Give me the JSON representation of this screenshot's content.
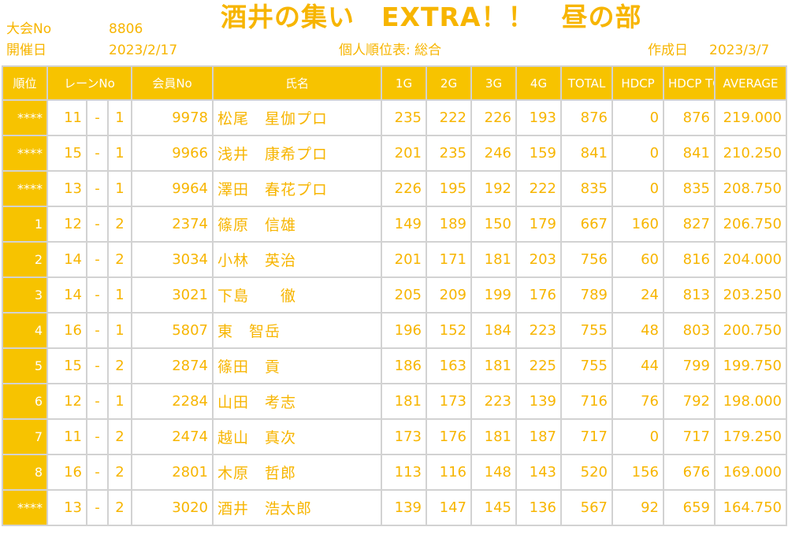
{
  "header": {
    "event_no_label": "大会No",
    "event_no": "8806",
    "date_label": "開催日",
    "date": "2023/2/17",
    "title": "酒井の集い　EXTRA！！　昼の部",
    "subtitle": "個人順位表: 総合",
    "created_label": "作成日",
    "created_date": "2023/3/7"
  },
  "columns": [
    "順位",
    "レーンNo",
    "会員No",
    "氏名",
    "1G",
    "2G",
    "3G",
    "4G",
    "TOTAL",
    "HDCP",
    "HDCP TOTAL",
    "AVERAGE"
  ],
  "lane_separator": "-",
  "rows": [
    {
      "rank": "****",
      "lane": "11",
      "lane_pos": "1",
      "member_no": "9978",
      "name": "松尾　星伽プロ",
      "g1": "235",
      "g2": "222",
      "g3": "226",
      "g4": "193",
      "total": "876",
      "hdcp": "0",
      "hdcp_total": "876",
      "average": "219.000"
    },
    {
      "rank": "****",
      "lane": "15",
      "lane_pos": "1",
      "member_no": "9966",
      "name": "浅井　康希プロ",
      "g1": "201",
      "g2": "235",
      "g3": "246",
      "g4": "159",
      "total": "841",
      "hdcp": "0",
      "hdcp_total": "841",
      "average": "210.250"
    },
    {
      "rank": "****",
      "lane": "13",
      "lane_pos": "1",
      "member_no": "9964",
      "name": "澤田　春花プロ",
      "g1": "226",
      "g2": "195",
      "g3": "192",
      "g4": "222",
      "total": "835",
      "hdcp": "0",
      "hdcp_total": "835",
      "average": "208.750"
    },
    {
      "rank": "1",
      "lane": "12",
      "lane_pos": "2",
      "member_no": "2374",
      "name": "篠原　信雄",
      "g1": "149",
      "g2": "189",
      "g3": "150",
      "g4": "179",
      "total": "667",
      "hdcp": "160",
      "hdcp_total": "827",
      "average": "206.750"
    },
    {
      "rank": "2",
      "lane": "14",
      "lane_pos": "2",
      "member_no": "3034",
      "name": "小林　英治",
      "g1": "201",
      "g2": "171",
      "g3": "181",
      "g4": "203",
      "total": "756",
      "hdcp": "60",
      "hdcp_total": "816",
      "average": "204.000"
    },
    {
      "rank": "3",
      "lane": "14",
      "lane_pos": "1",
      "member_no": "3021",
      "name": "下島　　徹",
      "g1": "205",
      "g2": "209",
      "g3": "199",
      "g4": "176",
      "total": "789",
      "hdcp": "24",
      "hdcp_total": "813",
      "average": "203.250"
    },
    {
      "rank": "4",
      "lane": "16",
      "lane_pos": "1",
      "member_no": "5807",
      "name": "東　智岳",
      "g1": "196",
      "g2": "152",
      "g3": "184",
      "g4": "223",
      "total": "755",
      "hdcp": "48",
      "hdcp_total": "803",
      "average": "200.750"
    },
    {
      "rank": "5",
      "lane": "15",
      "lane_pos": "2",
      "member_no": "2874",
      "name": "篠田　貢",
      "g1": "186",
      "g2": "163",
      "g3": "181",
      "g4": "225",
      "total": "755",
      "hdcp": "44",
      "hdcp_total": "799",
      "average": "199.750"
    },
    {
      "rank": "6",
      "lane": "12",
      "lane_pos": "1",
      "member_no": "2284",
      "name": "山田　考志",
      "g1": "181",
      "g2": "173",
      "g3": "223",
      "g4": "139",
      "total": "716",
      "hdcp": "76",
      "hdcp_total": "792",
      "average": "198.000"
    },
    {
      "rank": "7",
      "lane": "11",
      "lane_pos": "2",
      "member_no": "2474",
      "name": "越山　真次",
      "g1": "173",
      "g2": "176",
      "g3": "181",
      "g4": "187",
      "total": "717",
      "hdcp": "0",
      "hdcp_total": "717",
      "average": "179.250"
    },
    {
      "rank": "8",
      "lane": "16",
      "lane_pos": "2",
      "member_no": "2801",
      "name": "木原　哲郎",
      "g1": "113",
      "g2": "116",
      "g3": "148",
      "g4": "143",
      "total": "520",
      "hdcp": "156",
      "hdcp_total": "676",
      "average": "169.000"
    },
    {
      "rank": "****",
      "lane": "13",
      "lane_pos": "2",
      "member_no": "3020",
      "name": "酒井　浩太郎",
      "g1": "139",
      "g2": "147",
      "g3": "145",
      "g4": "136",
      "total": "567",
      "hdcp": "92",
      "hdcp_total": "659",
      "average": "164.750"
    }
  ]
}
